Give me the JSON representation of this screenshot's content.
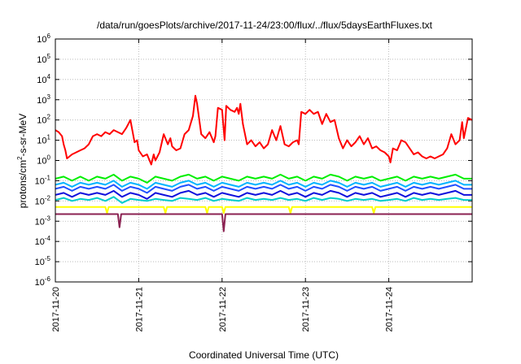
{
  "chart_data": {
    "type": "line",
    "title": "/data/run/goesPlots/archive/2017-11-24/23:00/flux/../flux/5daysEarthFluxes.txt",
    "xlabel": "Coordinated Universal Time (UTC)",
    "ylabel_parts": {
      "base": "protons/cm",
      "sup": "2",
      "rest": "-s-sr-MeV"
    },
    "x_scale": "time",
    "xlim_days": [
      0,
      5
    ],
    "x_ticks": [
      {
        "day": 0,
        "label": "2017-11-20"
      },
      {
        "day": 1,
        "label": "2017-11-21"
      },
      {
        "day": 2,
        "label": "2017-11-22"
      },
      {
        "day": 3,
        "label": "2017-11-23"
      },
      {
        "day": 4,
        "label": "2017-11-24"
      }
    ],
    "y_scale": "log",
    "ylim_exp": [
      -6,
      6
    ],
    "y_ticks": [
      {
        "exp": -6,
        "base": "10",
        "sup": "-6"
      },
      {
        "exp": -5,
        "base": "10",
        "sup": "-5"
      },
      {
        "exp": -4,
        "base": "10",
        "sup": "-4"
      },
      {
        "exp": -3,
        "base": "10",
        "sup": "-3"
      },
      {
        "exp": -2,
        "base": "10",
        "sup": "-2"
      },
      {
        "exp": -1,
        "base": "10",
        "sup": "-1"
      },
      {
        "exp": 0,
        "base": "10",
        "sup": "0"
      },
      {
        "exp": 1,
        "base": "10",
        "sup": "1"
      },
      {
        "exp": 2,
        "base": "10",
        "sup": "2"
      },
      {
        "exp": 3,
        "base": "10",
        "sup": "3"
      },
      {
        "exp": 4,
        "base": "10",
        "sup": "4"
      },
      {
        "exp": 5,
        "base": "10",
        "sup": "5"
      },
      {
        "exp": 6,
        "base": "10",
        "sup": "6"
      }
    ],
    "grid": true,
    "series": [
      {
        "color": "#ff0000",
        "x": [
          0,
          0.04,
          0.08,
          0.1,
          0.12,
          0.14,
          0.2,
          0.25,
          0.3,
          0.35,
          0.4,
          0.45,
          0.5,
          0.55,
          0.6,
          0.65,
          0.7,
          0.75,
          0.8,
          0.85,
          0.9,
          0.95,
          0.98,
          1.0,
          1.05,
          1.1,
          1.12,
          1.15,
          1.18,
          1.2,
          1.25,
          1.3,
          1.35,
          1.38,
          1.4,
          1.45,
          1.5,
          1.55,
          1.6,
          1.65,
          1.68,
          1.7,
          1.75,
          1.8,
          1.85,
          1.9,
          1.92,
          1.95,
          2.0,
          2.03,
          2.05,
          2.1,
          2.15,
          2.18,
          2.2,
          2.22,
          2.25,
          2.3,
          2.35,
          2.4,
          2.45,
          2.5,
          2.55,
          2.6,
          2.65,
          2.7,
          2.75,
          2.8,
          2.85,
          2.9,
          2.92,
          2.95,
          3.0,
          3.05,
          3.1,
          3.15,
          3.2,
          3.25,
          3.3,
          3.35,
          3.4,
          3.45,
          3.5,
          3.55,
          3.6,
          3.65,
          3.7,
          3.75,
          3.8,
          3.85,
          3.9,
          3.95,
          4.0,
          4.02,
          4.05,
          4.1,
          4.15,
          4.2,
          4.25,
          4.3,
          4.35,
          4.4,
          4.45,
          4.5,
          4.55,
          4.6,
          4.65,
          4.7,
          4.75,
          4.8,
          4.85,
          4.88,
          4.9,
          4.95,
          5.0
        ],
        "y_exp": [
          1.5,
          1.4,
          1.2,
          0.8,
          0.5,
          0.1,
          0.3,
          0.4,
          0.5,
          0.6,
          0.8,
          1.2,
          1.3,
          1.2,
          1.4,
          1.3,
          1.5,
          1.4,
          1.3,
          1.6,
          2.0,
          0.9,
          1.0,
          0.5,
          0.2,
          0.3,
          0.1,
          -0.2,
          0.3,
          0.0,
          0.4,
          1.3,
          0.8,
          1.1,
          0.7,
          0.5,
          0.6,
          1.3,
          1.5,
          2.2,
          3.2,
          2.8,
          1.3,
          1.1,
          1.4,
          0.9,
          1.2,
          2.6,
          2.5,
          1.0,
          2.7,
          2.5,
          2.4,
          2.6,
          2.3,
          2.8,
          1.8,
          0.8,
          1.0,
          0.7,
          0.9,
          0.6,
          0.8,
          1.5,
          1.0,
          1.7,
          0.8,
          0.7,
          0.9,
          1.0,
          0.8,
          2.4,
          2.3,
          2.5,
          2.3,
          2.4,
          1.8,
          2.3,
          1.9,
          2.0,
          1.1,
          0.6,
          1.0,
          0.7,
          0.9,
          1.2,
          0.8,
          1.1,
          0.6,
          0.7,
          0.5,
          0.4,
          0.2,
          -0.1,
          0.6,
          0.5,
          1.0,
          0.9,
          0.6,
          0.3,
          0.4,
          0.2,
          0.1,
          0.2,
          0.1,
          0.2,
          0.3,
          0.6,
          1.3,
          0.8,
          1.0,
          1.9,
          1.1,
          2.1,
          2.0
        ]
      },
      {
        "color": "#00ee00",
        "x": [
          0,
          0.1,
          0.2,
          0.3,
          0.4,
          0.5,
          0.6,
          0.7,
          0.8,
          0.9,
          1.0,
          1.1,
          1.2,
          1.3,
          1.4,
          1.5,
          1.6,
          1.7,
          1.8,
          1.9,
          2.0,
          2.1,
          2.2,
          2.3,
          2.4,
          2.5,
          2.6,
          2.7,
          2.8,
          2.9,
          3.0,
          3.1,
          3.2,
          3.3,
          3.4,
          3.5,
          3.6,
          3.7,
          3.8,
          3.9,
          4.0,
          4.1,
          4.2,
          4.3,
          4.4,
          4.5,
          4.6,
          4.7,
          4.8,
          4.9,
          5.0
        ],
        "y_exp": [
          -0.9,
          -0.8,
          -1.0,
          -0.8,
          -1.0,
          -0.8,
          -0.9,
          -0.7,
          -1.0,
          -0.8,
          -0.9,
          -1.1,
          -0.8,
          -0.9,
          -1.0,
          -0.8,
          -0.7,
          -0.9,
          -0.8,
          -1.0,
          -0.8,
          -0.9,
          -1.0,
          -0.8,
          -0.9,
          -0.8,
          -0.9,
          -0.7,
          -0.9,
          -0.8,
          -1.0,
          -0.8,
          -0.9,
          -0.7,
          -0.8,
          -1.0,
          -0.8,
          -0.9,
          -0.8,
          -1.0,
          -0.9,
          -0.8,
          -1.0,
          -0.8,
          -0.9,
          -0.8,
          -0.9,
          -0.8,
          -0.7,
          -0.9,
          -0.9
        ]
      },
      {
        "color": "#00b4ff",
        "x": [
          0,
          0.1,
          0.2,
          0.3,
          0.4,
          0.5,
          0.6,
          0.7,
          0.8,
          0.9,
          1.0,
          1.1,
          1.2,
          1.3,
          1.4,
          1.5,
          1.6,
          1.7,
          1.8,
          1.9,
          2.0,
          2.1,
          2.2,
          2.3,
          2.4,
          2.5,
          2.6,
          2.7,
          2.8,
          2.9,
          3.0,
          3.1,
          3.2,
          3.3,
          3.4,
          3.5,
          3.6,
          3.7,
          3.8,
          3.9,
          4.0,
          4.1,
          4.2,
          4.3,
          4.4,
          4.5,
          4.6,
          4.7,
          4.8,
          4.9,
          5.0
        ],
        "y_exp": [
          -1.2,
          -1.1,
          -1.3,
          -1.1,
          -1.2,
          -1.1,
          -1.2,
          -1.0,
          -1.3,
          -1.1,
          -1.2,
          -1.4,
          -1.1,
          -1.2,
          -1.3,
          -1.1,
          -1.0,
          -1.2,
          -1.1,
          -1.3,
          -1.1,
          -1.2,
          -1.3,
          -1.1,
          -1.2,
          -1.1,
          -1.2,
          -1.0,
          -1.2,
          -1.1,
          -1.3,
          -1.1,
          -1.2,
          -1.0,
          -1.1,
          -1.3,
          -1.1,
          -1.2,
          -1.1,
          -1.3,
          -1.2,
          -1.1,
          -1.3,
          -1.1,
          -1.2,
          -1.1,
          -1.2,
          -1.1,
          -1.0,
          -1.2,
          -1.2
        ]
      },
      {
        "color": "#2050ff",
        "x": [
          0,
          0.1,
          0.2,
          0.3,
          0.4,
          0.5,
          0.6,
          0.7,
          0.8,
          0.9,
          1.0,
          1.1,
          1.2,
          1.3,
          1.4,
          1.5,
          1.6,
          1.7,
          1.8,
          1.9,
          2.0,
          2.1,
          2.2,
          2.3,
          2.4,
          2.5,
          2.6,
          2.7,
          2.8,
          2.9,
          3.0,
          3.1,
          3.2,
          3.3,
          3.4,
          3.5,
          3.6,
          3.7,
          3.8,
          3.9,
          4.0,
          4.1,
          4.2,
          4.3,
          4.4,
          4.5,
          4.6,
          4.7,
          4.8,
          4.9,
          5.0
        ],
        "y_exp": [
          -1.4,
          -1.3,
          -1.5,
          -1.3,
          -1.4,
          -1.3,
          -1.4,
          -1.2,
          -1.5,
          -1.3,
          -1.4,
          -1.6,
          -1.3,
          -1.4,
          -1.5,
          -1.3,
          -1.2,
          -1.4,
          -1.3,
          -1.5,
          -1.3,
          -1.4,
          -1.5,
          -1.3,
          -1.4,
          -1.3,
          -1.4,
          -1.2,
          -1.4,
          -1.3,
          -1.5,
          -1.3,
          -1.4,
          -1.2,
          -1.3,
          -1.5,
          -1.3,
          -1.4,
          -1.3,
          -1.5,
          -1.4,
          -1.3,
          -1.5,
          -1.3,
          -1.4,
          -1.3,
          -1.4,
          -1.3,
          -1.2,
          -1.4,
          -1.4
        ]
      },
      {
        "color": "#1010dd",
        "x": [
          0,
          0.1,
          0.2,
          0.3,
          0.4,
          0.5,
          0.6,
          0.7,
          0.8,
          0.9,
          1.0,
          1.1,
          1.2,
          1.3,
          1.4,
          1.5,
          1.6,
          1.7,
          1.8,
          1.9,
          2.0,
          2.1,
          2.2,
          2.3,
          2.4,
          2.5,
          2.6,
          2.7,
          2.8,
          2.9,
          3.0,
          3.1,
          3.2,
          3.3,
          3.4,
          3.5,
          3.6,
          3.7,
          3.8,
          3.9,
          4.0,
          4.1,
          4.2,
          4.3,
          4.4,
          4.5,
          4.6,
          4.7,
          4.8,
          4.9,
          5.0
        ],
        "y_exp": [
          -1.7,
          -1.6,
          -1.8,
          -1.6,
          -1.7,
          -1.6,
          -1.7,
          -1.5,
          -1.8,
          -1.6,
          -1.7,
          -1.9,
          -1.6,
          -1.7,
          -1.8,
          -1.6,
          -1.5,
          -1.7,
          -1.6,
          -1.8,
          -1.6,
          -1.7,
          -1.8,
          -1.6,
          -1.7,
          -1.6,
          -1.7,
          -1.5,
          -1.7,
          -1.6,
          -1.8,
          -1.6,
          -1.7,
          -1.5,
          -1.6,
          -1.8,
          -1.6,
          -1.7,
          -1.6,
          -1.8,
          -1.7,
          -1.6,
          -1.8,
          -1.6,
          -1.7,
          -1.6,
          -1.7,
          -1.6,
          -1.5,
          -1.7,
          -1.7
        ]
      },
      {
        "color": "#00cccc",
        "x": [
          0,
          0.1,
          0.2,
          0.3,
          0.4,
          0.5,
          0.6,
          0.7,
          0.8,
          0.9,
          1.0,
          1.1,
          1.2,
          1.3,
          1.4,
          1.5,
          1.6,
          1.7,
          1.8,
          1.9,
          2.0,
          2.1,
          2.2,
          2.3,
          2.4,
          2.5,
          2.6,
          2.7,
          2.8,
          2.9,
          3.0,
          3.1,
          3.2,
          3.3,
          3.4,
          3.5,
          3.6,
          3.7,
          3.8,
          3.9,
          4.0,
          4.1,
          4.2,
          4.3,
          4.4,
          4.5,
          4.6,
          4.7,
          4.8,
          4.9,
          5.0
        ],
        "y_exp": [
          -1.95,
          -1.85,
          -2.0,
          -1.9,
          -1.95,
          -1.85,
          -2.0,
          -1.8,
          -2.1,
          -1.9,
          -1.95,
          -2.0,
          -1.9,
          -1.95,
          -2.0,
          -1.85,
          -1.9,
          -1.95,
          -1.85,
          -2.0,
          -1.9,
          -1.95,
          -2.0,
          -1.85,
          -1.95,
          -1.9,
          -1.95,
          -1.85,
          -1.95,
          -1.9,
          -2.0,
          -1.85,
          -1.95,
          -1.85,
          -1.9,
          -2.0,
          -1.9,
          -1.95,
          -1.9,
          -2.0,
          -1.95,
          -1.9,
          -2.0,
          -1.85,
          -1.95,
          -1.9,
          -1.95,
          -1.9,
          -1.85,
          -1.95,
          -1.95
        ]
      },
      {
        "color": "#ffff00",
        "x": [
          0,
          0.2,
          0.4,
          0.6,
          0.62,
          0.64,
          0.8,
          1.0,
          1.2,
          1.3,
          1.32,
          1.34,
          1.5,
          1.7,
          1.8,
          1.82,
          1.84,
          2.0,
          2.02,
          2.04,
          2.2,
          2.4,
          2.6,
          2.8,
          2.82,
          2.84,
          3.0,
          3.2,
          3.4,
          3.6,
          3.8,
          3.82,
          3.84,
          4.0,
          4.2,
          4.4,
          4.6,
          4.8,
          5.0
        ],
        "y_exp": [
          -2.3,
          -2.3,
          -2.3,
          -2.3,
          -2.6,
          -2.3,
          -2.3,
          -2.3,
          -2.3,
          -2.3,
          -2.6,
          -2.3,
          -2.3,
          -2.3,
          -2.3,
          -2.6,
          -2.3,
          -2.3,
          -2.6,
          -2.3,
          -2.3,
          -2.3,
          -2.3,
          -2.3,
          -2.6,
          -2.3,
          -2.3,
          -2.3,
          -2.3,
          -2.3,
          -2.3,
          -2.6,
          -2.3,
          -2.3,
          -2.3,
          -2.3,
          -2.3,
          -2.3,
          -2.3
        ]
      },
      {
        "color": "#8b2252",
        "x": [
          0,
          0.3,
          0.6,
          0.75,
          0.77,
          0.79,
          1.0,
          1.3,
          1.6,
          2.0,
          2.02,
          2.04,
          2.3,
          2.6,
          2.8,
          3.0,
          3.3,
          3.6,
          4.0,
          4.3,
          4.6,
          4.8,
          5.0
        ],
        "y_exp": [
          -2.65,
          -2.65,
          -2.65,
          -2.65,
          -3.3,
          -2.65,
          -2.65,
          -2.65,
          -2.65,
          -2.65,
          -3.5,
          -2.65,
          -2.65,
          -2.65,
          -2.65,
          -2.65,
          -2.65,
          -2.65,
          -2.65,
          -2.65,
          -2.65,
          -2.65,
          -2.65
        ]
      }
    ]
  }
}
